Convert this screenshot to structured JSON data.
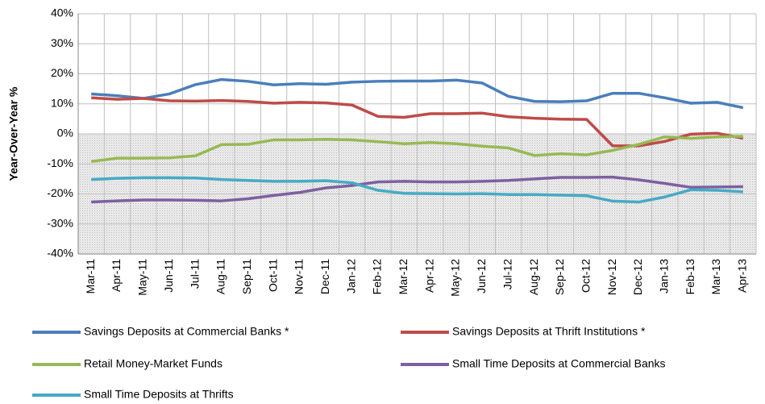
{
  "chart_data": {
    "type": "line",
    "y_label": "Year-Over-Year %",
    "categories": [
      "Mar-11",
      "Apr-11",
      "May-11",
      "Jun-11",
      "Jul-11",
      "Aug-11",
      "Sep-11",
      "Oct-11",
      "Nov-11",
      "Dec-11",
      "Jan-12",
      "Feb-12",
      "Mar-12",
      "Apr-12",
      "May-12",
      "Jun-12",
      "Jul-12",
      "Aug-12",
      "Sep-12",
      "Oct-12",
      "Nov-12",
      "Dec-12",
      "Jan-13",
      "Feb-13",
      "Mar-13",
      "Apr-13"
    ],
    "ylim": [
      -40,
      40
    ],
    "yticks": [
      {
        "value": -40,
        "label": "-40%"
      },
      {
        "value": -30,
        "label": "-30%"
      },
      {
        "value": -20,
        "label": "-20%"
      },
      {
        "value": -10,
        "label": "-10%"
      },
      {
        "value": 0,
        "label": "0%"
      },
      {
        "value": 10,
        "label": "10%"
      },
      {
        "value": 20,
        "label": "20%"
      },
      {
        "value": 30,
        "label": "30%"
      },
      {
        "value": 40,
        "label": "40%"
      }
    ],
    "grid": true,
    "series": [
      {
        "name": "Savings Deposits at Commercial Banks *",
        "color": "#4a7ebb",
        "values": [
          13.3,
          12.7,
          11.8,
          13.3,
          16.4,
          18.1,
          17.5,
          16.3,
          16.7,
          16.5,
          17.2,
          17.5,
          17.6,
          17.6,
          17.9,
          16.9,
          12.5,
          10.8,
          10.7,
          11.0,
          13.5,
          13.5,
          12.0,
          10.2,
          10.5,
          8.7
        ]
      },
      {
        "name": "Savings Deposits at Thrift Institutions *",
        "color": "#be4b48",
        "values": [
          12.0,
          11.5,
          11.8,
          11.0,
          10.9,
          11.1,
          10.8,
          10.2,
          10.5,
          10.3,
          9.6,
          5.8,
          5.5,
          6.7,
          6.7,
          6.9,
          5.7,
          5.2,
          4.9,
          4.8,
          -4.0,
          -4.0,
          -2.5,
          -0.1,
          0.2,
          -1.5
        ]
      },
      {
        "name": "Retail Money-Market Funds",
        "color": "#98b954",
        "values": [
          -9.2,
          -8.1,
          -8.1,
          -8.0,
          -7.3,
          -3.6,
          -3.5,
          -2.0,
          -2.0,
          -1.8,
          -2.0,
          -2.6,
          -3.3,
          -2.9,
          -3.3,
          -4.1,
          -4.7,
          -7.2,
          -6.6,
          -7.0,
          -5.5,
          -3.5,
          -1.0,
          -1.5,
          -1.0,
          -0.8
        ]
      },
      {
        "name": "Small Time Deposits at Commercial Banks",
        "color": "#7d60a0",
        "values": [
          -22.7,
          -22.3,
          -22.0,
          -22.0,
          -22.1,
          -22.3,
          -21.6,
          -20.5,
          -19.5,
          -18.0,
          -17.2,
          -16.0,
          -15.8,
          -16.0,
          -16.0,
          -15.8,
          -15.5,
          -15.0,
          -14.5,
          -14.5,
          -14.4,
          -15.3,
          -16.5,
          -17.8,
          -17.7,
          -17.6
        ]
      },
      {
        "name": "Small Time Deposits at Thrifts",
        "color": "#46aac5",
        "values": [
          -15.2,
          -14.8,
          -14.6,
          -14.6,
          -14.7,
          -15.2,
          -15.5,
          -15.8,
          -15.8,
          -15.6,
          -16.3,
          -18.8,
          -19.8,
          -19.9,
          -20.0,
          -19.9,
          -20.2,
          -20.2,
          -20.4,
          -20.6,
          -22.4,
          -22.7,
          -21.0,
          -18.6,
          -18.8,
          -19.3
        ]
      }
    ]
  }
}
